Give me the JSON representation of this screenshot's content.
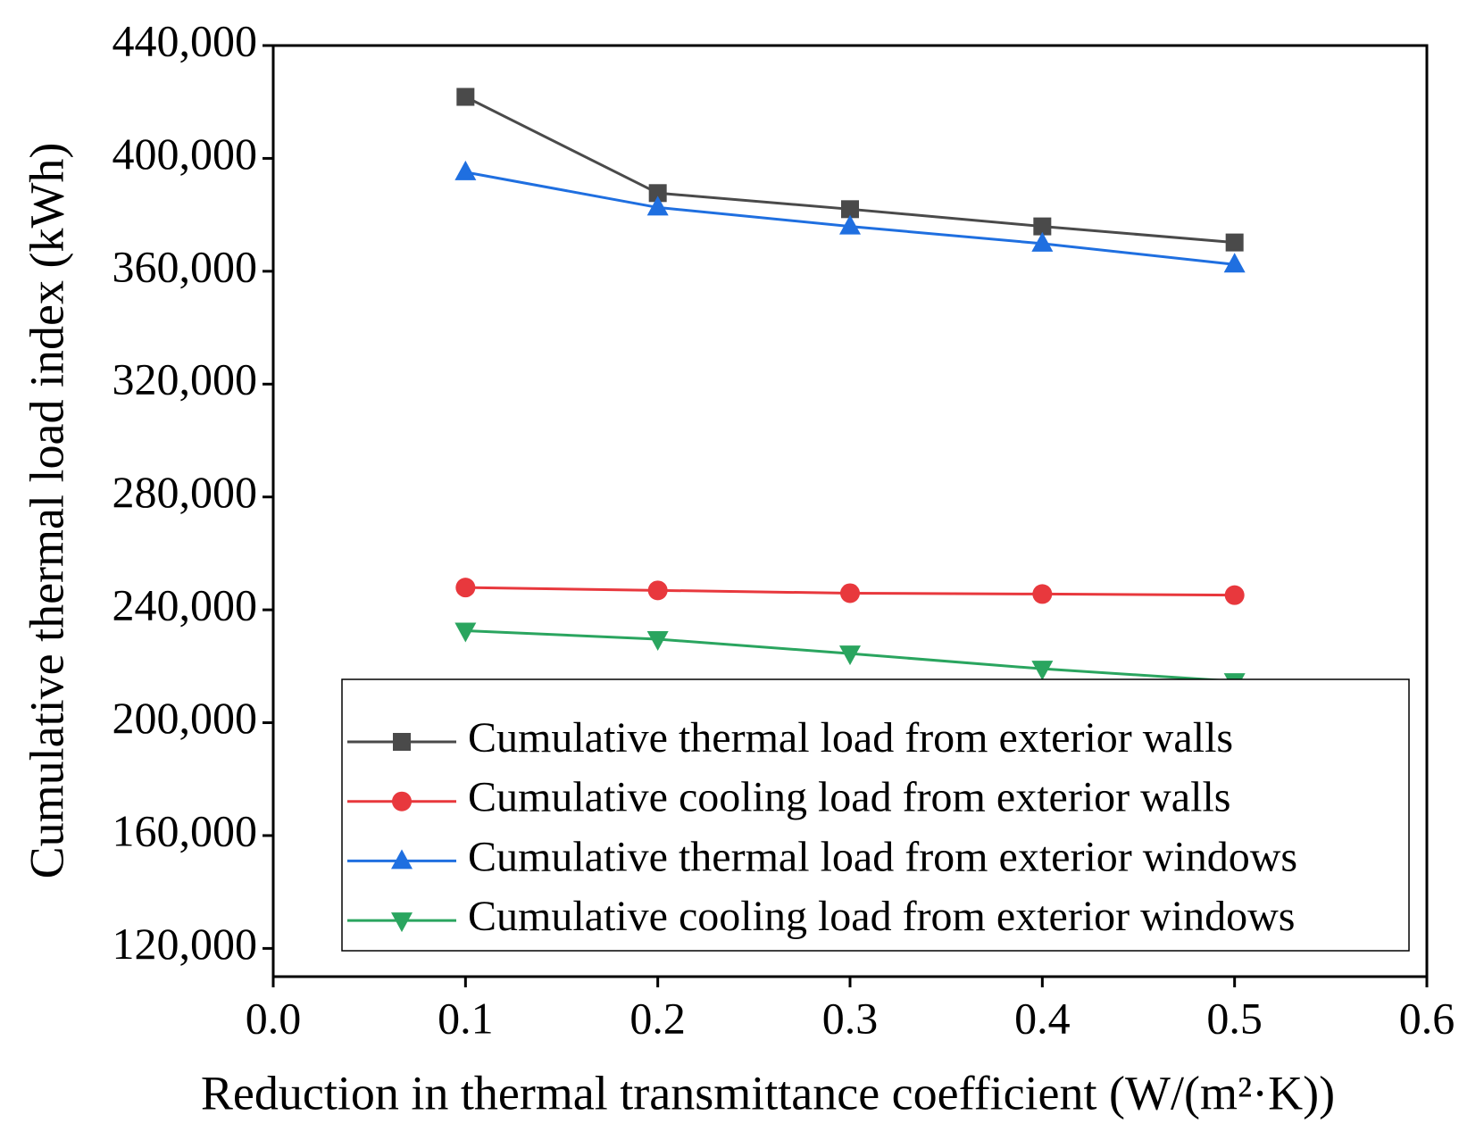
{
  "chart_data": {
    "type": "line",
    "x_label": "Reduction in thermal transmittance coefficient (W/(m²·K))",
    "y_label": "Cumulative thermal load index (kWh)",
    "x": [
      0.1,
      0.2,
      0.3,
      0.4,
      0.5
    ],
    "series": [
      {
        "name": "Cumulative thermal load from exterior walls",
        "color": "#4a4a4a",
        "marker": "square",
        "values": [
          421800,
          387700,
          382000,
          375900,
          370200
        ]
      },
      {
        "name": "Cumulative cooling load from exterior walls",
        "color": "#e8383d",
        "marker": "circle",
        "values": [
          247900,
          246900,
          245900,
          245600,
          245200
        ]
      },
      {
        "name": "Cumulative thermal load from exterior windows",
        "color": "#1f6fe0",
        "marker": "triangle-up",
        "values": [
          395100,
          382600,
          375900,
          369800,
          362400
        ]
      },
      {
        "name": "Cumulative cooling load from exterior windows",
        "color": "#2aa55f",
        "marker": "triangle-down",
        "values": [
          232600,
          229600,
          224500,
          219100,
          214700
        ]
      }
    ],
    "xlim": [
      0,
      0.6
    ],
    "xticks": [
      {
        "value": 0,
        "label": "0.0"
      },
      0.1,
      0.2,
      0.3,
      0.4,
      0.5,
      0.6
    ],
    "ylim": [
      110000,
      440000
    ],
    "yticks": [
      {
        "value": 120000,
        "label": "120,000"
      },
      {
        "value": 160000,
        "label": "160,000"
      },
      {
        "value": 200000,
        "label": "200,000"
      },
      {
        "value": 240000,
        "label": "240,000"
      },
      {
        "value": 280000,
        "label": "280,000"
      },
      {
        "value": 320000,
        "label": "320,000"
      },
      {
        "value": 360000,
        "label": "360,000"
      },
      {
        "value": 400000,
        "label": "400,000"
      },
      {
        "value": 440000,
        "label": "440,000"
      }
    ],
    "grid": false,
    "legend": "lower right"
  }
}
